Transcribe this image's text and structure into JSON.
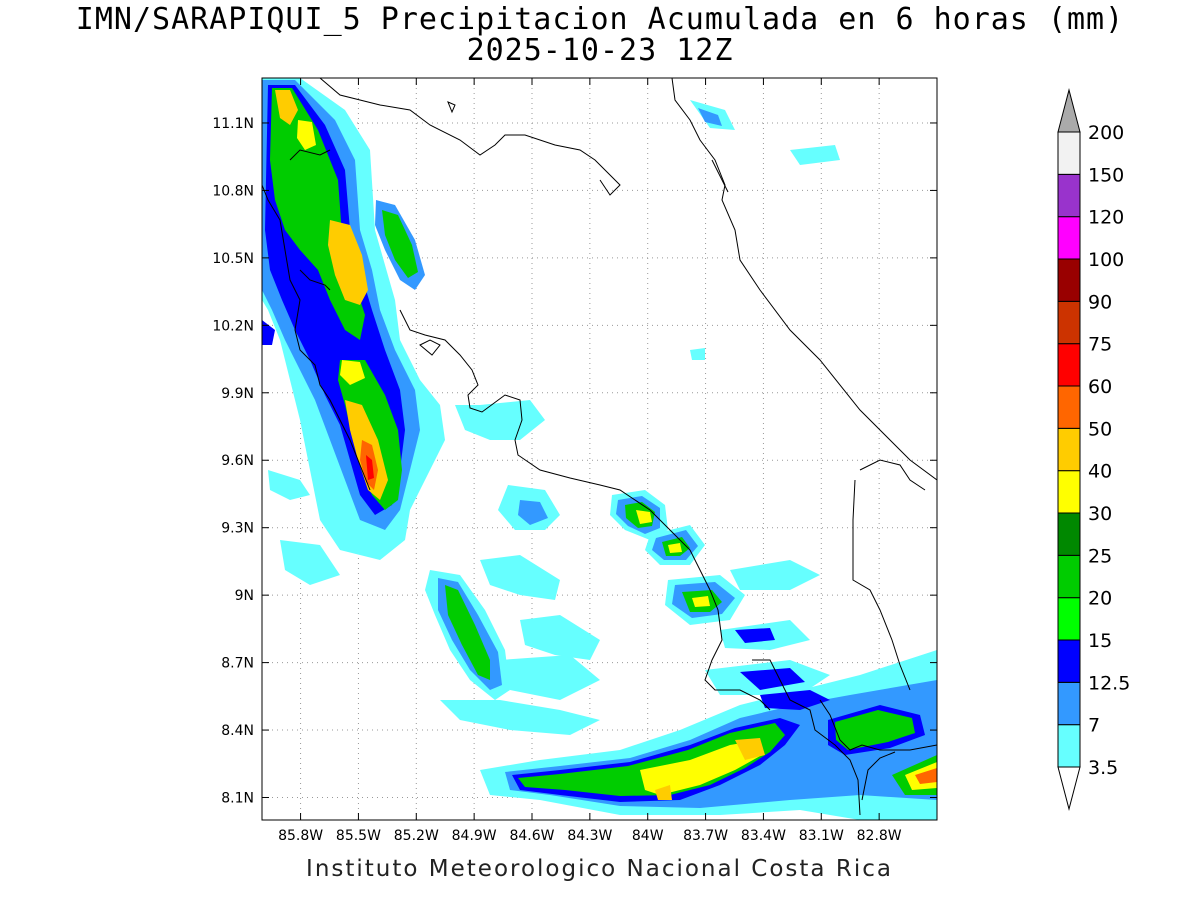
{
  "header": {
    "title": "IMN/SARAPIQUI_5 Precipitacion Acumulada en 6 horas (mm)",
    "subtitle": "2025-10-23 12Z"
  },
  "footer": {
    "credit": "Instituto Meteorologico Nacional Costa Rica"
  },
  "map": {
    "lat_labels": [
      "11.1N",
      "10.8N",
      "10.5N",
      "10.2N",
      "9.9N",
      "9.6N",
      "9.3N",
      "9N",
      "8.7N",
      "8.4N",
      "8.1N"
    ],
    "lat_values": [
      11.1,
      10.8,
      10.5,
      10.2,
      9.9,
      9.6,
      9.3,
      9.0,
      8.7,
      8.4,
      8.1
    ],
    "lon_labels": [
      "85.8W",
      "85.5W",
      "85.2W",
      "84.9W",
      "84.6W",
      "84.3W",
      "84W",
      "83.7W",
      "83.4W",
      "83.1W",
      "82.8W"
    ],
    "lon_values": [
      -85.8,
      -85.5,
      -85.2,
      -84.9,
      -84.6,
      -84.3,
      -84.0,
      -83.7,
      -83.4,
      -83.1,
      -82.8
    ],
    "lat_range": [
      8.0,
      11.3
    ],
    "lon_range": [
      -86.0,
      -82.5
    ]
  },
  "legend": {
    "labels": [
      "3.5",
      "7",
      "12.5",
      "15",
      "20",
      "25",
      "30",
      "40",
      "50",
      "60",
      "75",
      "90",
      "100",
      "120",
      "150",
      "200"
    ],
    "colors": [
      "#ffffff",
      "#66ffff",
      "#3399ff",
      "#0000ff",
      "#00ff00",
      "#00cc00",
      "#008800",
      "#ffff00",
      "#ffcc00",
      "#ff6600",
      "#ff0000",
      "#cc3300",
      "#990000",
      "#ff00ff",
      "#9933cc",
      "#f2f2f2",
      "#aaaaaa"
    ]
  }
}
